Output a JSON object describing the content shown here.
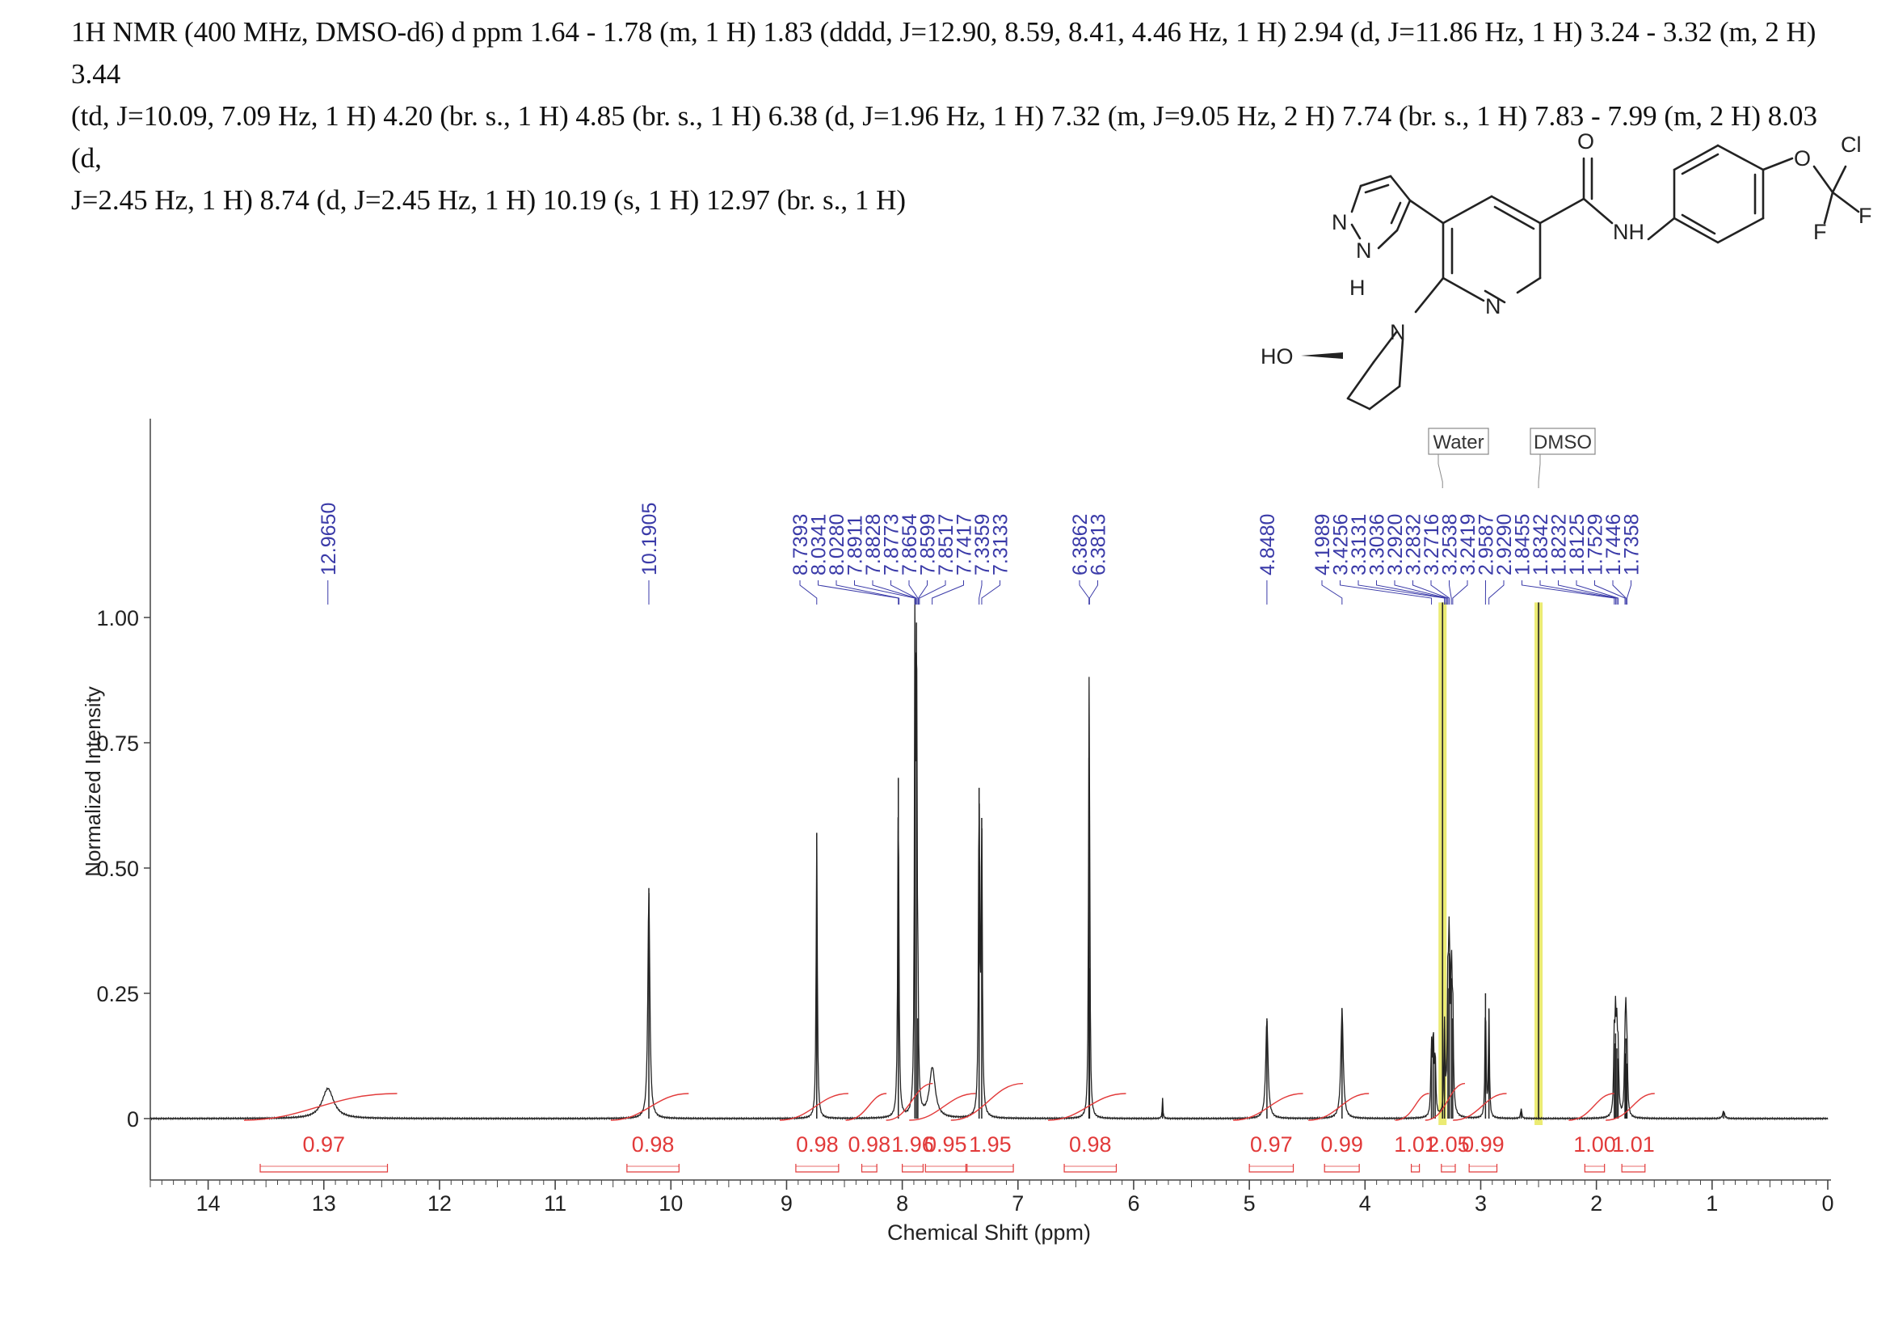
{
  "header": {
    "lines": [
      "1H NMR (400 MHz, DMSO-d6) d ppm 1.64 - 1.78 (m, 1 H) 1.83 (dddd, J=12.90, 8.59, 8.41, 4.46 Hz, 1 H) 2.94 (d, J=11.86 Hz, 1 H) 3.24 - 3.32 (m, 2 H) 3.44",
      "(td, J=10.09, 7.09 Hz, 1 H) 4.20 (br. s., 1 H) 4.85 (br. s., 1 H) 6.38 (d, J=1.96 Hz, 1 H) 7.32 (m, J=9.05 Hz, 2 H) 7.74 (br. s., 1 H) 7.83 - 7.99 (m, 2 H) 8.03 (d,",
      "J=2.45 Hz, 1 H) 8.74 (d, J=2.45 Hz, 1 H) 10.19 (s, 1 H) 12.97 (br. s., 1 H)"
    ]
  },
  "structure": {
    "atom_labels": [
      "N",
      "N",
      "H",
      "HO",
      "N",
      "N",
      "O",
      "NH",
      "O",
      "Cl",
      "F",
      "F"
    ]
  },
  "colors": {
    "spectrum": "#222222",
    "peak_labels": "#3a3aa8",
    "integrals": "#e23a3a",
    "solvent_highlight": "#e8e85a"
  },
  "chart_data": {
    "type": "line",
    "xlabel": "Chemical Shift (ppm)",
    "ylabel": "Normalized Intensity",
    "xlim": [
      14.5,
      0
    ],
    "ylim": [
      -0.13,
      1.0
    ],
    "x_ticks": [
      "14",
      "13",
      "12",
      "11",
      "10",
      "9",
      "8",
      "7",
      "6",
      "5",
      "4",
      "3",
      "2",
      "1",
      "0"
    ],
    "y_ticks": [
      {
        "value": 1.0,
        "label": "1.00"
      },
      {
        "value": 0.75,
        "label": "0.75"
      },
      {
        "value": 0.5,
        "label": "0.50"
      },
      {
        "value": 0.25,
        "label": "0.25"
      },
      {
        "value": 0,
        "label": "0"
      }
    ],
    "peaks": [
      {
        "ppm": 12.965,
        "height": 0.06,
        "width": 0.06
      },
      {
        "ppm": 10.1905,
        "height": 0.46,
        "width": 0.01
      },
      {
        "ppm": 8.7393,
        "height": 0.57,
        "width": 0.006
      },
      {
        "ppm": 8.0341,
        "height": 0.68,
        "width": 0.006
      },
      {
        "ppm": 7.891,
        "height": 0.92,
        "width": 0.005
      },
      {
        "ppm": 7.8773,
        "height": 0.99,
        "width": 0.005
      },
      {
        "ppm": 7.8654,
        "height": 0.2,
        "width": 0.005
      },
      {
        "ppm": 7.74,
        "height": 0.1,
        "width": 0.03
      },
      {
        "ppm": 7.3359,
        "height": 0.66,
        "width": 0.006
      },
      {
        "ppm": 7.3133,
        "height": 0.6,
        "width": 0.006
      },
      {
        "ppm": 6.3862,
        "height": 0.72,
        "width": 0.005
      },
      {
        "ppm": 6.3813,
        "height": 0.3,
        "width": 0.005
      },
      {
        "ppm": 5.75,
        "height": 0.04,
        "width": 0.004
      },
      {
        "ppm": 4.848,
        "height": 0.2,
        "width": 0.012
      },
      {
        "ppm": 4.1989,
        "height": 0.22,
        "width": 0.012
      },
      {
        "ppm": 3.4256,
        "height": 0.14,
        "width": 0.006
      },
      {
        "ppm": 3.41,
        "height": 0.16,
        "width": 0.006
      },
      {
        "ppm": 3.3935,
        "height": 0.12,
        "width": 0.006
      },
      {
        "ppm": 3.3131,
        "height": 0.18,
        "width": 0.006
      },
      {
        "ppm": 3.2832,
        "height": 0.26,
        "width": 0.006
      },
      {
        "ppm": 3.2716,
        "height": 0.33,
        "width": 0.006
      },
      {
        "ppm": 3.2538,
        "height": 0.28,
        "width": 0.006
      },
      {
        "ppm": 3.2419,
        "height": 0.2,
        "width": 0.006
      },
      {
        "ppm": 2.9587,
        "height": 0.25,
        "width": 0.005
      },
      {
        "ppm": 2.929,
        "height": 0.22,
        "width": 0.005
      },
      {
        "ppm": 2.65,
        "height": 0.02,
        "width": 0.006
      },
      {
        "ppm": 1.8455,
        "height": 0.15,
        "width": 0.006
      },
      {
        "ppm": 1.8342,
        "height": 0.17,
        "width": 0.006
      },
      {
        "ppm": 1.8232,
        "height": 0.14,
        "width": 0.006
      },
      {
        "ppm": 1.8125,
        "height": 0.12,
        "width": 0.006
      },
      {
        "ppm": 1.7529,
        "height": 0.13,
        "width": 0.006
      },
      {
        "ppm": 1.7446,
        "height": 0.16,
        "width": 0.006
      },
      {
        "ppm": 1.7358,
        "height": 0.11,
        "width": 0.006
      },
      {
        "ppm": 0.9,
        "height": 0.015,
        "width": 0.01
      }
    ],
    "solvent_peaks": [
      {
        "name": "Water",
        "ppm": 3.33,
        "height": 1.03
      },
      {
        "name": "DMSO",
        "ppm": 2.5,
        "height": 1.03
      }
    ],
    "peak_label_groups": [
      {
        "labels": [
          "12.9650"
        ]
      },
      {
        "labels": [
          "10.1905"
        ]
      },
      {
        "labels": [
          "8.7393",
          "8.0341",
          "8.0280",
          "7.8911",
          "7.8828",
          "7.8773",
          "7.8654",
          "7.8599",
          "7.8517",
          "7.7417",
          "7.3359",
          "7.3133"
        ]
      },
      {
        "labels": [
          "6.3862",
          "6.3813"
        ]
      },
      {
        "labels": [
          "4.8480"
        ]
      },
      {
        "labels": [
          "4.1989",
          "3.4256",
          "3.3131",
          "3.3036",
          "3.2920",
          "3.2832",
          "3.2716",
          "3.2538",
          "3.2419",
          "2.9587",
          "2.9290",
          "1.8455",
          "1.8342",
          "1.8232",
          "1.8125",
          "1.7529",
          "1.7446",
          "1.7358"
        ]
      }
    ],
    "integrals": [
      {
        "label": "0.97",
        "from": 13.55,
        "to": 12.45,
        "step": 0.05
      },
      {
        "label": "0.98",
        "from": 10.38,
        "to": 9.93,
        "step": 0.05
      },
      {
        "label": "0.98",
        "from": 8.92,
        "to": 8.55,
        "step": 0.05
      },
      {
        "label": "0.98",
        "from": 8.35,
        "to": 8.22,
        "step": 0.05
      },
      {
        "label": "1.96",
        "from": 8.0,
        "to": 7.82,
        "step": 0.09
      },
      {
        "label": "0.95",
        "from": 7.8,
        "to": 7.45,
        "step": 0.05
      },
      {
        "label": "1.95",
        "from": 7.44,
        "to": 7.04,
        "step": 0.09
      },
      {
        "label": "0.98",
        "from": 6.6,
        "to": 6.15,
        "step": 0.05
      },
      {
        "label": "0.97",
        "from": 5.0,
        "to": 4.62,
        "step": 0.05
      },
      {
        "label": "0.99",
        "from": 4.35,
        "to": 4.05,
        "step": 0.05
      },
      {
        "label": "1.01",
        "from": 3.6,
        "to": 3.53,
        "step": 0.05
      },
      {
        "label": "2.05",
        "from": 3.34,
        "to": 3.22,
        "step": 0.09
      },
      {
        "label": "0.99",
        "from": 3.1,
        "to": 2.86,
        "step": 0.05
      },
      {
        "label": "1.00",
        "from": 2.1,
        "to": 1.93,
        "step": 0.05
      },
      {
        "label": "1.01",
        "from": 1.78,
        "to": 1.58,
        "step": 0.05
      }
    ]
  }
}
